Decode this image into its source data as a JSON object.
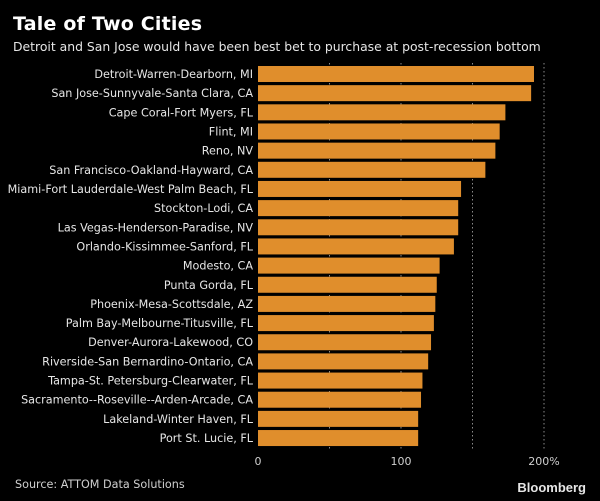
{
  "header": {
    "title": "Tale of Two Cities",
    "subtitle": "Detroit and San Jose would have been best bet to purchase at post-recession bottom"
  },
  "footer": {
    "source": "Source: ATTOM Data Solutions",
    "brand": "Bloomberg"
  },
  "colors": {
    "bar": "#E08E2C",
    "background": "#000000",
    "gridline": "#8a8a8a"
  },
  "chart_data": {
    "type": "bar",
    "orientation": "horizontal",
    "title": "Tale of Two Cities",
    "subtitle": "Detroit and San Jose would have been best bet to purchase at post-recession bottom",
    "xlabel": "",
    "ylabel": "",
    "xlim": [
      0,
      200
    ],
    "x_ticks": [
      0,
      100,
      200
    ],
    "x_tick_labels": [
      "0",
      "100",
      "200%"
    ],
    "gridlines": [
      50,
      100,
      150,
      200
    ],
    "grid": true,
    "legend": "none",
    "categories": [
      "Detroit-Warren-Dearborn, MI",
      "San Jose-Sunnyvale-Santa Clara, CA",
      "Cape Coral-Fort Myers, FL",
      "Flint, MI",
      "Reno, NV",
      "San Francisco-Oakland-Hayward, CA",
      "Miami-Fort Lauderdale-West Palm Beach, FL",
      "Stockton-Lodi, CA",
      "Las Vegas-Henderson-Paradise, NV",
      "Orlando-Kissimmee-Sanford, FL",
      "Modesto, CA",
      "Punta Gorda, FL",
      "Phoenix-Mesa-Scottsdale, AZ",
      "Palm Bay-Melbourne-Titusville, FL",
      "Denver-Aurora-Lakewood, CO",
      "Riverside-San Bernardino-Ontario, CA",
      "Tampa-St. Petersburg-Clearwater, FL",
      "Sacramento--Roseville--Arden-Arcade, CA",
      "Lakeland-Winter Haven, FL",
      "Port St. Lucie, FL"
    ],
    "values": [
      193,
      191,
      173,
      169,
      166,
      159,
      142,
      140,
      140,
      137,
      127,
      125,
      124,
      123,
      121,
      119,
      115,
      114,
      112,
      112
    ],
    "unit": "%"
  }
}
